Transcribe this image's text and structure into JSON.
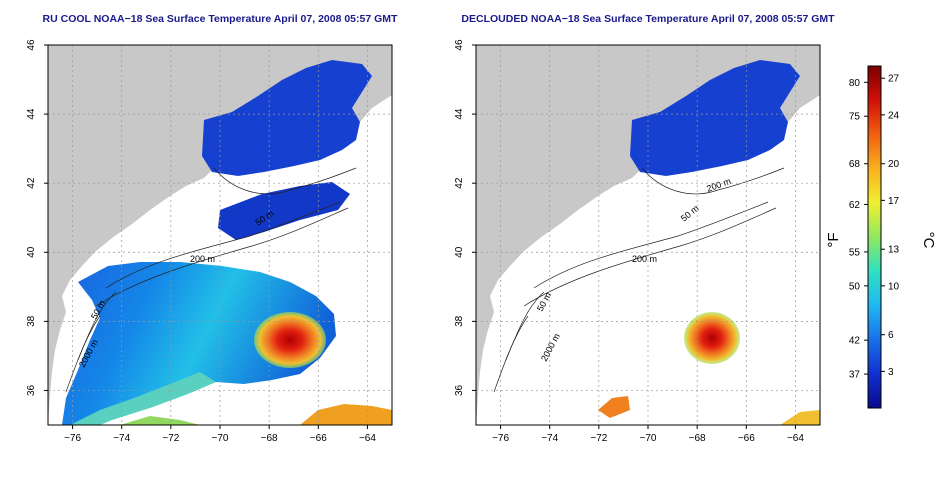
{
  "panels": [
    {
      "id": "left",
      "title": "RU COOL NOAA−18 Sea Surface Temperature April 07, 2008 05:57 GMT",
      "contour_labels": [
        "200 m",
        "50 m",
        "2000 m",
        "50 m"
      ]
    },
    {
      "id": "right",
      "title": "DECLOUDED NOAA−18 Sea Surface Temperature April 07, 2008 05:57 GMT",
      "contour_labels": [
        "200 m",
        "50 m",
        "2000 m",
        "200 m",
        "50 m"
      ]
    }
  ],
  "map_axes": {
    "lon_ticks": [
      "−76",
      "−74",
      "−72",
      "−70",
      "−68",
      "−66",
      "−64"
    ],
    "lat_ticks": [
      "46",
      "44",
      "42",
      "40",
      "38",
      "36"
    ],
    "lon_range": [
      -77,
      -63
    ],
    "lat_range": [
      35,
      46
    ]
  },
  "colorbar": {
    "fahrenheit_label": "°F",
    "celsius_label": "°C",
    "fahrenheit_ticks": [
      "80",
      "75",
      "68",
      "62",
      "55",
      "50",
      "42",
      "37"
    ],
    "celsius_ticks": [
      "27",
      "24",
      "20",
      "17",
      "13",
      "10",
      "6",
      "3"
    ],
    "colors": [
      "#0a0a8c",
      "#1030d0",
      "#1a70e8",
      "#20b8f0",
      "#30e0c0",
      "#90e860",
      "#f0f030",
      "#f8b020",
      "#f06010",
      "#d01008",
      "#7a0000"
    ]
  },
  "colors": {
    "land": "#c8c8c8",
    "sea": "#ffffff",
    "title": "#1a1a8c",
    "grid": "#999999"
  }
}
